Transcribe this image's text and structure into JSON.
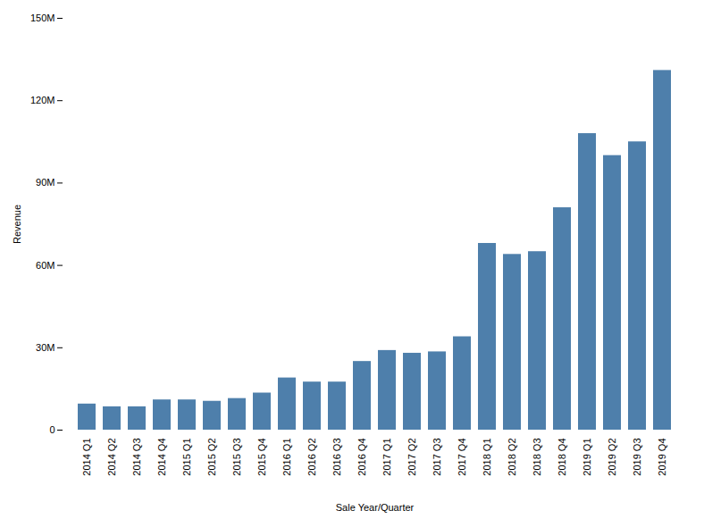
{
  "chart_data": {
    "type": "bar",
    "categories": [
      "2014 Q1",
      "2014 Q2",
      "2014 Q3",
      "2014 Q4",
      "2015 Q1",
      "2015 Q2",
      "2015 Q3",
      "2015 Q4",
      "2016 Q1",
      "2016 Q2",
      "2016 Q3",
      "2016 Q4",
      "2017 Q1",
      "2017 Q2",
      "2017 Q3",
      "2017 Q4",
      "2018 Q1",
      "2018 Q2",
      "2018 Q3",
      "2018 Q4",
      "2019 Q1",
      "2019 Q2",
      "2019 Q3",
      "2019 Q4"
    ],
    "values": [
      9500000,
      8500000,
      8500000,
      11000000,
      11000000,
      10500000,
      11500000,
      13500000,
      19000000,
      17500000,
      17500000,
      25000000,
      29000000,
      28000000,
      28500000,
      34000000,
      68000000,
      64000000,
      65000000,
      81000000,
      108000000,
      100000000,
      105000000,
      131000000
    ],
    "color": "#4e7fab",
    "xlabel": "Sale Year/Quarter",
    "ylabel": "Revenue",
    "ylim": [
      0,
      150000000
    ],
    "yticks": [
      0,
      {
        "value": 30000000,
        "label": "30M"
      },
      {
        "value": 60000000,
        "label": "60M"
      },
      {
        "value": 90000000,
        "label": "90M"
      },
      {
        "value": 120000000,
        "label": "120M"
      },
      {
        "value": 150000000,
        "label": "150M"
      }
    ],
    "grid": false
  }
}
